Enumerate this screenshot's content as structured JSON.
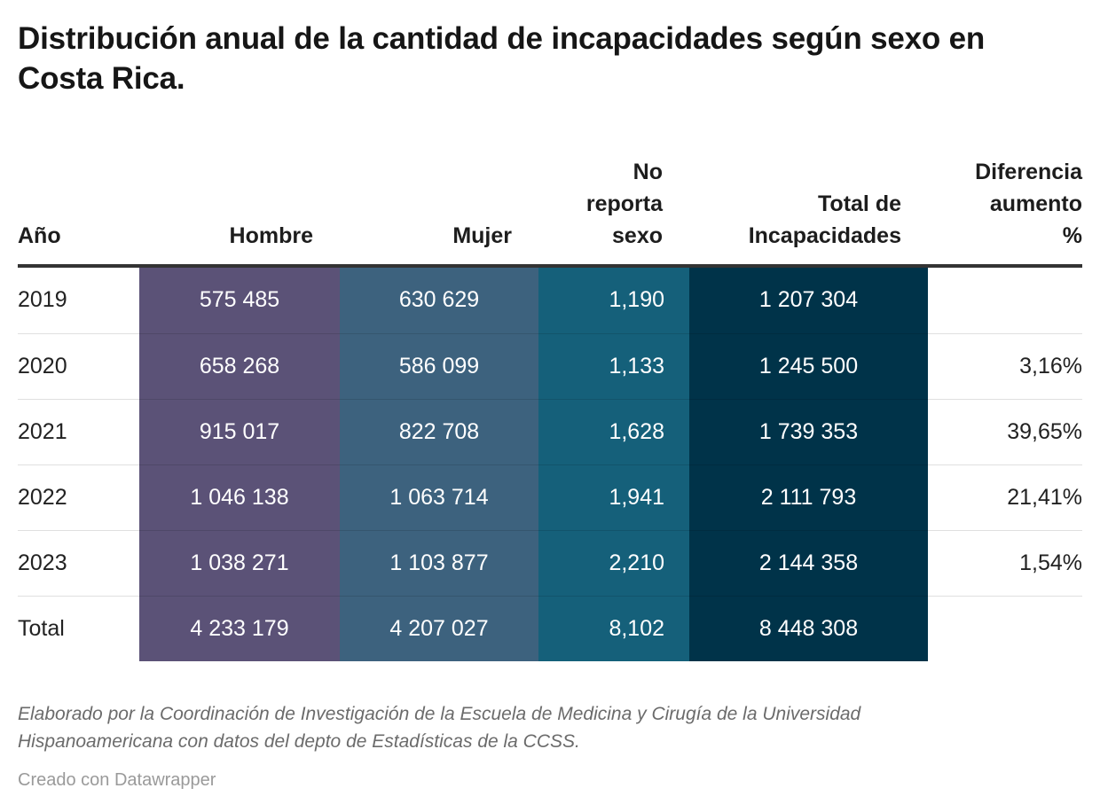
{
  "page": {
    "title": "Distribución anual de la cantidad de incapacidades según sexo en Costa Rica.",
    "footer_note": "Elaborado por la Coordinación de Investigación de la Escuela de Medicina y Cirugía de la Universidad Hispanoamericana con datos del depto de Estadísticas de la CCSS.",
    "attribution": "Creado con Datawrapper"
  },
  "table": {
    "headers": [
      {
        "label": "Año",
        "align": "left"
      },
      {
        "label": "Hombre",
        "align": "right"
      },
      {
        "label": "Mujer",
        "align": "right"
      },
      {
        "label": "No reporta sexo",
        "align": "right"
      },
      {
        "label": "Total de Incapacidades",
        "align": "right"
      },
      {
        "label": "Diferencia aumento %",
        "align": "right"
      }
    ],
    "colors": {
      "hombre": "#5b5277",
      "mujer": "#3d627e",
      "no_reporta_sexo": "#15607a",
      "total": "#003349",
      "header_border": "#333333"
    },
    "rows": [
      {
        "year": "2019",
        "hombre": "575 485",
        "mujer": "630 629",
        "no_reporta": "1,190",
        "total": "1 207 304",
        "diferencia": ""
      },
      {
        "year": "2020",
        "hombre": "658 268",
        "mujer": "586 099",
        "no_reporta": "1,133",
        "total": "1 245 500",
        "diferencia": "3,16%"
      },
      {
        "year": "2021",
        "hombre": "915 017",
        "mujer": "822 708",
        "no_reporta": "1,628",
        "total": "1 739 353",
        "diferencia": "39,65%"
      },
      {
        "year": "2022",
        "hombre": "1 046 138",
        "mujer": "1 063 714",
        "no_reporta": "1,941",
        "total": "2 111 793",
        "diferencia": "21,41%"
      },
      {
        "year": "2023",
        "hombre": "1 038 271",
        "mujer": "1 103 877",
        "no_reporta": "2,210",
        "total": "2 144 358",
        "diferencia": "1,54%"
      },
      {
        "year": "Total",
        "hombre": "4 233 179",
        "mujer": "4 207 027",
        "no_reporta": "8,102",
        "total": "8 448 308",
        "diferencia": ""
      }
    ]
  },
  "chart_data": {
    "type": "table",
    "title": "Distribución anual de la cantidad de incapacidades según sexo en Costa Rica.",
    "columns": [
      "Año",
      "Hombre",
      "Mujer",
      "No reporta sexo",
      "Total de Incapacidades",
      "Diferencia aumento %"
    ],
    "rows": [
      [
        "2019",
        575485,
        630629,
        1190,
        1207304,
        null
      ],
      [
        "2020",
        658268,
        586099,
        1133,
        1245500,
        3.16
      ],
      [
        "2021",
        915017,
        822708,
        1628,
        1739353,
        39.65
      ],
      [
        "2022",
        1046138,
        1063714,
        1941,
        2111793,
        21.41
      ],
      [
        "2023",
        1038271,
        1103877,
        2210,
        2144358,
        1.54
      ],
      [
        "Total",
        4233179,
        4207027,
        8102,
        8448308,
        null
      ]
    ],
    "notes": "Elaborado por la Coordinación de Investigación de la Escuela de Medicina y Cirugía de la Universidad Hispanoamericana con datos del depto de Estadísticas de la CCSS.",
    "source_tool": "Creado con Datawrapper"
  }
}
